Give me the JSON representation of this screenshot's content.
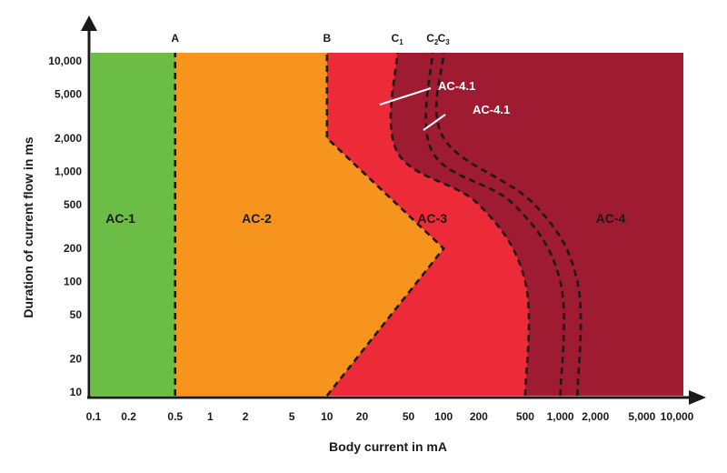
{
  "chart_data": {
    "type": "area",
    "title": "",
    "xlabel": "Body current in mA",
    "ylabel": "Duration of current flow in ms",
    "x_scale": "log",
    "y_scale": "log",
    "xlim": [
      0.08,
      11000
    ],
    "ylim": [
      8.5,
      11000
    ],
    "x_ticks": [
      {
        "value": 0.1,
        "label": "0.1"
      },
      {
        "value": 0.2,
        "label": "0.2"
      },
      {
        "value": 0.5,
        "label": "0.5"
      },
      {
        "value": 1,
        "label": "1"
      },
      {
        "value": 2,
        "label": "2"
      },
      {
        "value": 5,
        "label": "5"
      },
      {
        "value": 10,
        "label": "10"
      },
      {
        "value": 20,
        "label": "20"
      },
      {
        "value": 50,
        "label": "50"
      },
      {
        "value": 100,
        "label": "100"
      },
      {
        "value": 200,
        "label": "200"
      },
      {
        "value": 500,
        "label": "500"
      },
      {
        "value": 1000,
        "label": "1,000"
      },
      {
        "value": 2000,
        "label": "2,000"
      },
      {
        "value": 5000,
        "label": "5,000"
      },
      {
        "value": 10000,
        "label": "10,000"
      }
    ],
    "y_ticks": [
      {
        "value": 10,
        "label": "10"
      },
      {
        "value": 20,
        "label": "20"
      },
      {
        "value": 50,
        "label": "50"
      },
      {
        "value": 100,
        "label": "100"
      },
      {
        "value": 200,
        "label": "200"
      },
      {
        "value": 500,
        "label": "500"
      },
      {
        "value": 1000,
        "label": "1,000"
      },
      {
        "value": 2000,
        "label": "2,000"
      },
      {
        "value": 5000,
        "label": "5,000"
      },
      {
        "value": 10000,
        "label": "10,000"
      }
    ],
    "curves": [
      {
        "name": "A",
        "label": "A",
        "sub": "",
        "points": [
          [
            0.5,
            10
          ],
          [
            0.5,
            10000
          ]
        ]
      },
      {
        "name": "B",
        "label": "B",
        "sub": "",
        "points": [
          [
            10,
            10
          ],
          [
            100,
            200
          ],
          [
            10,
            2000
          ],
          [
            10,
            10000
          ]
        ]
      },
      {
        "name": "C1",
        "label": "C",
        "sub": "1",
        "points": [
          [
            500,
            10
          ],
          [
            500,
            100
          ],
          [
            200,
            500
          ],
          [
            40,
            1500
          ],
          [
            40,
            10000
          ]
        ]
      },
      {
        "name": "C2",
        "label": "C",
        "sub": "2",
        "points": [
          [
            1000,
            10
          ],
          [
            1000,
            100
          ],
          [
            400,
            500
          ],
          [
            80,
            1500
          ],
          [
            80,
            10000
          ]
        ]
      },
      {
        "name": "C3",
        "label": "C",
        "sub": "3",
        "points": [
          [
            1400,
            10
          ],
          [
            1400,
            100
          ],
          [
            600,
            500
          ],
          [
            100,
            2000
          ],
          [
            100,
            10000
          ]
        ]
      }
    ],
    "zones": [
      {
        "name": "AC-1",
        "label": "AC-1",
        "color": "#6cbd45",
        "label_at": [
          0.17,
          500
        ]
      },
      {
        "name": "AC-2",
        "label": "AC-2",
        "color": "#f7941d",
        "label_at": [
          2.5,
          500
        ]
      },
      {
        "name": "AC-3",
        "label": "AC-3",
        "color": "#ed2a37",
        "label_at": [
          80,
          500
        ]
      },
      {
        "name": "AC-4",
        "label": "AC-4",
        "color": "#9e1b32",
        "label_at": [
          2700,
          500
        ]
      }
    ],
    "annotations": [
      {
        "text": "AC-4.1",
        "position": "between C1 and C2, upper area"
      },
      {
        "text": "AC-4.1",
        "position": "between C2 and C3, upper area"
      }
    ]
  },
  "colors": {
    "axis": "#1a1a1a",
    "curve": "#1a1a1a",
    "callout": "#ffffff"
  }
}
